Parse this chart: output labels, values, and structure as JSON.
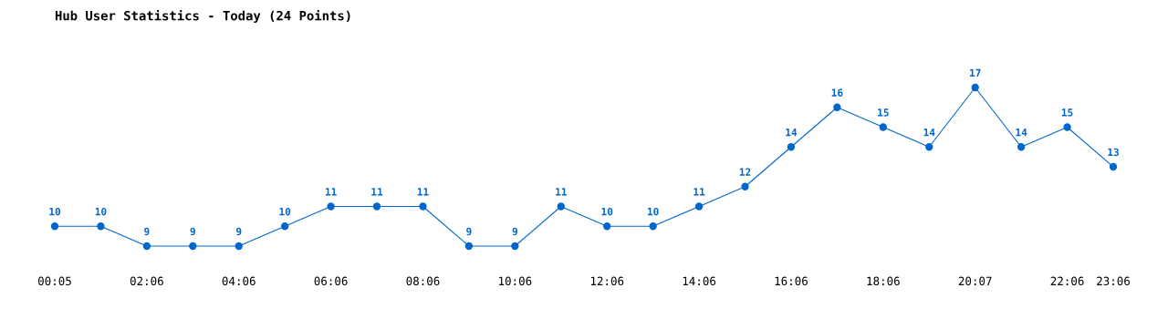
{
  "chart_data": {
    "type": "line",
    "title": "Hub User Statistics - Today (24 Points)",
    "categories": [
      "00:05",
      null,
      "02:06",
      null,
      "04:06",
      null,
      "06:06",
      null,
      "08:06",
      null,
      "10:06",
      null,
      "12:06",
      null,
      "14:06",
      null,
      "16:06",
      null,
      "18:06",
      null,
      "20:07",
      null,
      "22:06",
      "23:06"
    ],
    "series": [
      {
        "color": "#0066cc",
        "values": [
          10,
          10,
          9,
          9,
          9,
          10,
          11,
          11,
          11,
          9,
          9,
          11,
          10,
          10,
          11,
          12,
          14,
          16,
          15,
          14,
          17,
          14,
          15,
          13
        ]
      }
    ],
    "data_labels": true,
    "marker": "circle",
    "line_style": "solid",
    "grid": false,
    "legend": false
  }
}
